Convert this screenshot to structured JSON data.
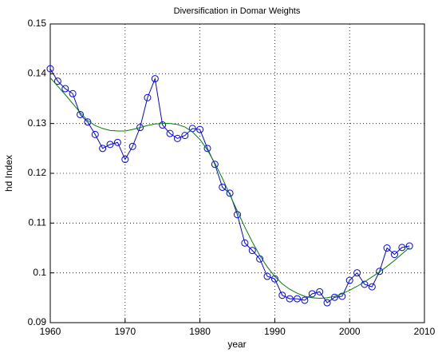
{
  "chart_data": {
    "type": "line",
    "title": "Diversification in Domar Weights",
    "x_label": "year",
    "y_label": "hd Index",
    "x": [
      1960,
      1961,
      1962,
      1963,
      1964,
      1965,
      1966,
      1967,
      1968,
      1969,
      1970,
      1971,
      1972,
      1973,
      1974,
      1975,
      1976,
      1977,
      1978,
      1979,
      1980,
      1981,
      1982,
      1983,
      1984,
      1985,
      1986,
      1987,
      1988,
      1989,
      1990,
      1991,
      1992,
      1993,
      1994,
      1995,
      1996,
      1997,
      1998,
      1999,
      2000,
      2001,
      2002,
      2003,
      2004,
      2005,
      2006,
      2007,
      2008
    ],
    "series": [
      {
        "color": "#0000ff",
        "marker": "circle",
        "values": [
          0.141,
          0.1385,
          0.137,
          0.136,
          0.1318,
          0.1303,
          0.1278,
          0.125,
          0.1258,
          0.1262,
          0.1228,
          0.1254,
          0.1292,
          0.1352,
          0.139,
          0.1297,
          0.128,
          0.127,
          0.1276,
          0.129,
          0.1288,
          0.125,
          0.1218,
          0.1172,
          0.116,
          0.1117,
          0.106,
          0.1045,
          0.1028,
          0.0993,
          0.0988,
          0.0955,
          0.0948,
          0.0948,
          0.0945,
          0.0958,
          0.0962,
          0.094,
          0.0951,
          0.0953,
          0.0985,
          0.1,
          0.0977,
          0.0972,
          0.1003,
          0.105,
          0.1037,
          0.1051,
          0.1054
        ]
      },
      {
        "color": "#008000",
        "values": [
          0.1392,
          0.1375,
          0.1358,
          0.134,
          0.1322,
          0.1306,
          0.1296,
          0.129,
          0.1286,
          0.1285,
          0.1285,
          0.1288,
          0.1292,
          0.1296,
          0.1299,
          0.13,
          0.13,
          0.1298,
          0.1293,
          0.1283,
          0.1268,
          0.1247,
          0.122,
          0.119,
          0.1157,
          0.1124,
          0.1092,
          0.1062,
          0.1035,
          0.1012,
          0.0993,
          0.0978,
          0.0967,
          0.0959,
          0.0953,
          0.095,
          0.0949,
          0.095,
          0.0953,
          0.0958,
          0.0965,
          0.0973,
          0.0982,
          0.0992,
          0.1002,
          0.1013,
          0.1025,
          0.1038,
          0.1051
        ]
      }
    ],
    "xlim": [
      1960,
      2010
    ],
    "xticks": [
      1960,
      1970,
      1980,
      1990,
      2000,
      2010
    ],
    "ylim": [
      0.09,
      0.15
    ],
    "yticks": [
      0.09,
      0.1,
      0.11,
      0.12,
      0.13,
      0.14,
      0.15
    ],
    "grid": true
  }
}
